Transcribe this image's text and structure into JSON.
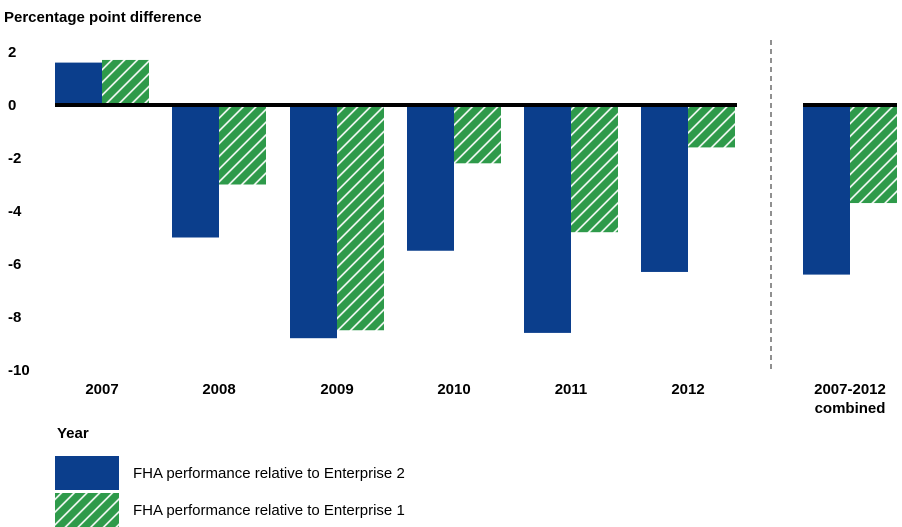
{
  "chart_data": {
    "type": "bar",
    "title": "",
    "ylabel": "Percentage point difference",
    "xlabel": "Year",
    "ylim": [
      -10,
      2
    ],
    "yticks": [
      2,
      0,
      -2,
      -4,
      -6,
      -8,
      -10
    ],
    "categories": [
      "2007",
      "2008",
      "2009",
      "2010",
      "2011",
      "2012",
      "2007-2012 combined"
    ],
    "series": [
      {
        "name": "FHA performance relative to Enterprise 2",
        "color": "#0b3e8c",
        "pattern": "solid",
        "values": [
          1.6,
          -5.0,
          -8.8,
          -5.5,
          -8.6,
          -6.3,
          -6.4
        ]
      },
      {
        "name": "FHA performance relative to Enterprise 1",
        "color": "#2e9a4a",
        "pattern": "diagonal-hatch",
        "values": [
          1.7,
          -3.0,
          -8.5,
          -2.2,
          -4.8,
          -1.6,
          -3.7
        ]
      }
    ],
    "grid": false,
    "legend_position": "bottom-left",
    "separator_before_category": "2007-2012 combined"
  }
}
